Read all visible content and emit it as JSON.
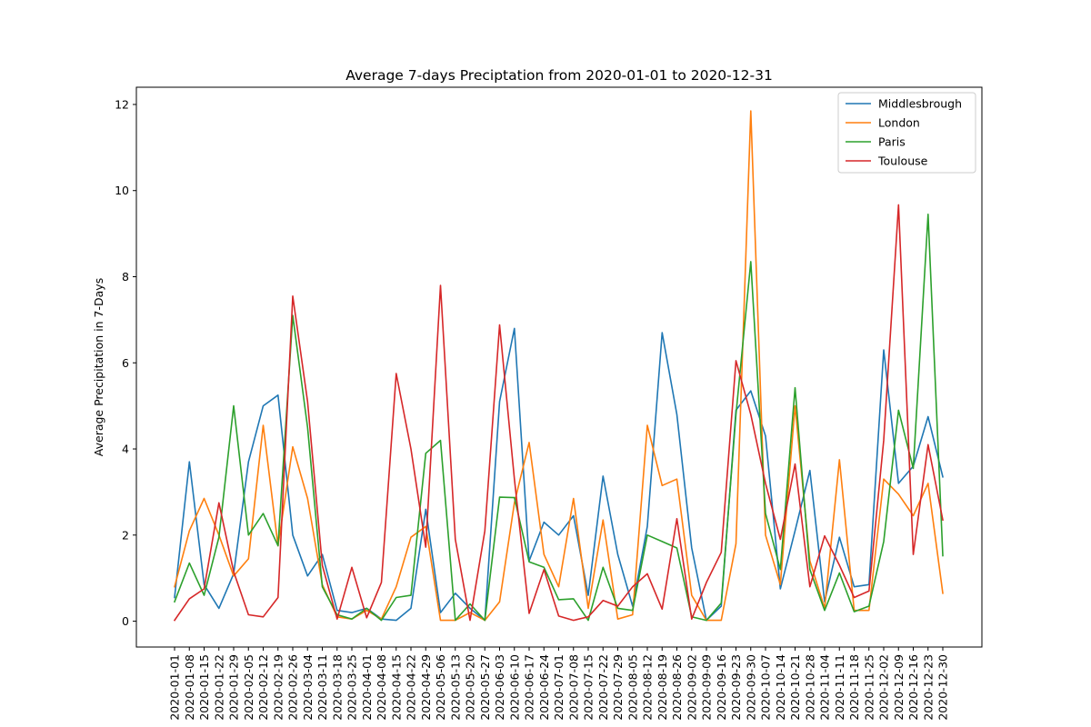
{
  "chart_data": {
    "type": "line",
    "title": "Average 7-days Preciptation from 2020-01-01 to 2020-12-31",
    "xlabel": "",
    "ylabel": "Average Precipitation in 7-Days",
    "ylim": [
      -0.6,
      12.4
    ],
    "yticks": [
      0,
      2,
      4,
      6,
      8,
      10,
      12
    ],
    "grid": false,
    "legend_position": "top-right",
    "x": [
      "2020-01-01",
      "2020-01-08",
      "2020-01-15",
      "2020-01-22",
      "2020-01-29",
      "2020-02-05",
      "2020-02-12",
      "2020-02-19",
      "2020-02-26",
      "2020-03-04",
      "2020-03-11",
      "2020-03-18",
      "2020-03-25",
      "2020-04-01",
      "2020-04-08",
      "2020-04-15",
      "2020-04-22",
      "2020-04-29",
      "2020-05-06",
      "2020-05-13",
      "2020-05-20",
      "2020-05-27",
      "2020-06-03",
      "2020-06-10",
      "2020-06-17",
      "2020-06-24",
      "2020-07-01",
      "2020-07-08",
      "2020-07-15",
      "2020-07-22",
      "2020-07-29",
      "2020-08-05",
      "2020-08-12",
      "2020-08-19",
      "2020-08-26",
      "2020-09-02",
      "2020-09-09",
      "2020-09-16",
      "2020-09-23",
      "2020-09-30",
      "2020-10-07",
      "2020-10-14",
      "2020-10-21",
      "2020-10-28",
      "2020-11-04",
      "2020-11-11",
      "2020-11-18",
      "2020-11-25",
      "2020-12-02",
      "2020-12-09",
      "2020-12-16",
      "2020-12-23",
      "2020-12-30"
    ],
    "series": [
      {
        "name": "Middlesbrough",
        "color": "#1f77b4",
        "values": [
          0.55,
          3.7,
          0.85,
          0.3,
          1.1,
          3.7,
          5.0,
          5.25,
          2.0,
          1.05,
          1.55,
          0.25,
          0.2,
          0.3,
          0.05,
          0.02,
          0.3,
          2.6,
          0.2,
          0.65,
          0.3,
          0.02,
          5.1,
          6.8,
          1.4,
          2.3,
          2.0,
          2.45,
          0.6,
          3.37,
          1.55,
          0.35,
          2.2,
          6.7,
          4.8,
          1.7,
          0.02,
          0.35,
          4.9,
          5.35,
          4.3,
          0.75,
          2.1,
          3.5,
          0.45,
          1.95,
          0.8,
          0.85,
          6.3,
          3.2,
          3.6,
          4.75,
          3.35
        ]
      },
      {
        "name": "London",
        "color": "#ff7f0e",
        "values": [
          0.8,
          2.1,
          2.85,
          2.0,
          1.05,
          1.45,
          4.55,
          1.75,
          4.05,
          2.85,
          0.85,
          0.1,
          0.05,
          0.25,
          0.05,
          0.8,
          1.95,
          2.2,
          0.02,
          0.02,
          0.2,
          0.02,
          0.45,
          2.75,
          4.15,
          1.55,
          0.8,
          2.85,
          0.3,
          2.35,
          0.05,
          0.15,
          4.55,
          3.15,
          3.3,
          0.6,
          0.02,
          0.02,
          1.8,
          11.85,
          2.0,
          0.85,
          5.0,
          1.4,
          0.3,
          3.75,
          0.25,
          0.25,
          3.3,
          2.95,
          2.45,
          3.2,
          0.65
        ]
      },
      {
        "name": "Paris",
        "color": "#2ca02c",
        "values": [
          0.45,
          1.35,
          0.6,
          1.95,
          5.0,
          2.0,
          2.5,
          1.75,
          7.1,
          4.5,
          0.8,
          0.15,
          0.05,
          0.3,
          0.02,
          0.55,
          0.6,
          3.9,
          4.2,
          0.02,
          0.4,
          0.02,
          2.88,
          2.87,
          1.38,
          1.25,
          0.5,
          0.52,
          0.02,
          1.25,
          0.3,
          0.25,
          2.0,
          1.85,
          1.7,
          0.1,
          0.02,
          0.42,
          4.8,
          8.35,
          2.5,
          1.2,
          5.42,
          1.2,
          0.25,
          1.12,
          0.22,
          0.35,
          1.85,
          4.9,
          3.55,
          9.45,
          1.52
        ]
      },
      {
        "name": "Toulouse",
        "color": "#d62728",
        "values": [
          0.02,
          0.52,
          0.75,
          2.75,
          1.15,
          0.15,
          0.1,
          0.55,
          7.55,
          5.1,
          1.3,
          0.05,
          1.25,
          0.08,
          0.9,
          5.75,
          4.0,
          1.72,
          7.8,
          1.9,
          0.02,
          2.1,
          6.88,
          3.3,
          0.18,
          1.2,
          0.12,
          0.02,
          0.1,
          0.48,
          0.35,
          0.8,
          1.1,
          0.28,
          2.38,
          0.05,
          0.9,
          1.6,
          6.05,
          4.8,
          3.2,
          1.9,
          3.65,
          0.8,
          1.98,
          1.3,
          0.55,
          0.7,
          4.2,
          9.67,
          1.55,
          4.1,
          2.35
        ]
      }
    ]
  }
}
